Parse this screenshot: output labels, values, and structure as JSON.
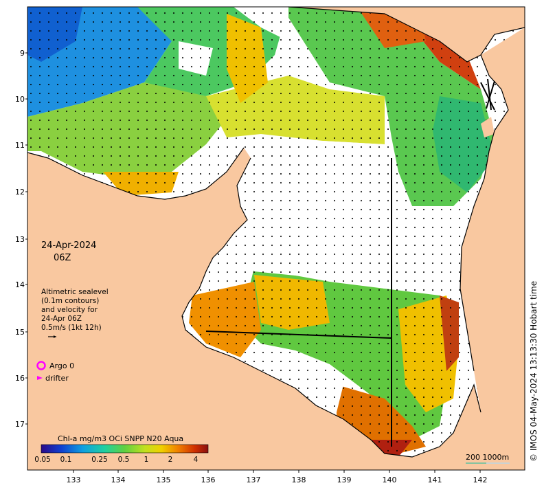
{
  "map": {
    "lat_ticks": [
      "9",
      "10",
      "11",
      "12",
      "13",
      "14",
      "15",
      "16",
      "17"
    ],
    "lon_ticks": [
      "133",
      "134",
      "135",
      "136",
      "137",
      "138",
      "139",
      "140",
      "141",
      "142"
    ],
    "date_line1": "24-Apr-2024",
    "date_line2": "06Z",
    "legend_lines": [
      "Altimetric sealevel",
      "(0.1m contours)",
      "and velocity for",
      "24-Apr 06Z",
      "0.5m/s (1kt 12h)"
    ],
    "argo_label": "Argo 0",
    "drifter_label": "drifter",
    "colorbar_title": "Chl-a mg/m3 OCi SNPP N20 Aqua",
    "colorbar_ticks": [
      "0.05",
      "0.1",
      "0.25",
      "0.5",
      "1",
      "2",
      "4"
    ],
    "scale_label": "200  1000m",
    "credit": "© IMOS 04-May-2024 13:13:30 Hobart time",
    "colors": {
      "land": "#f9c8a0",
      "argo": "#ff00ff",
      "drifter": "#ff00ff",
      "scale_line": "#40c0a0"
    }
  }
}
